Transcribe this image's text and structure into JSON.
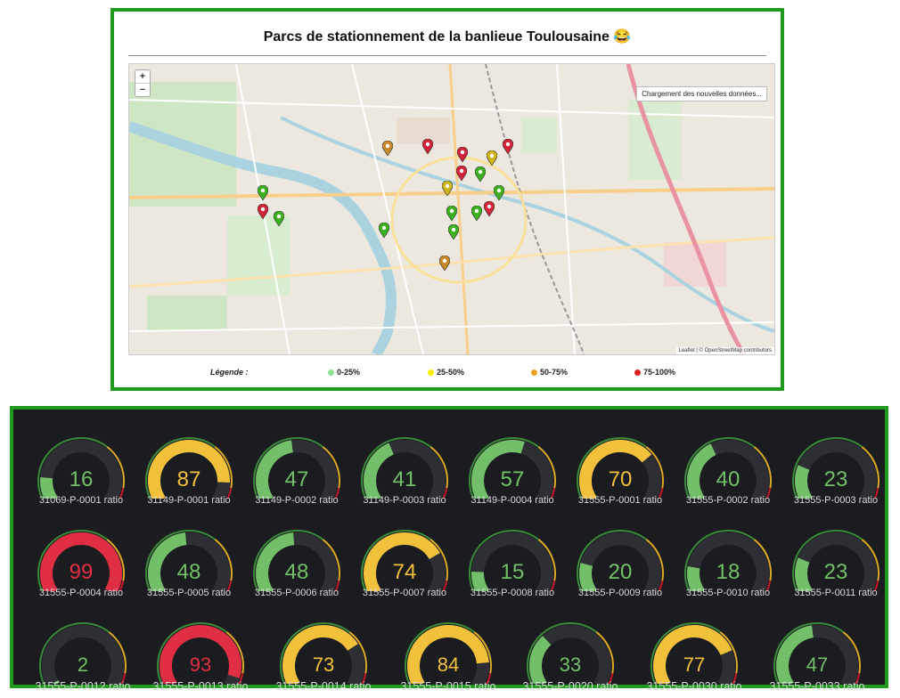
{
  "map_panel": {
    "title": "Parcs de stationnement de la banlieue Toulousaine 😂",
    "zoom_in": "+",
    "zoom_out": "−",
    "loading_text": "Chargement des nouvelles données...",
    "attribution": "Leaflet | © OpenStreetMap contributors",
    "legend": {
      "title": "Légende :",
      "items": [
        {
          "label": "0-25%",
          "color": "#8ee38e"
        },
        {
          "label": "25-50%",
          "color": "#ffee00"
        },
        {
          "label": "50-75%",
          "color": "#f0a020"
        },
        {
          "label": "75-100%",
          "color": "#dd2020"
        }
      ]
    },
    "marker_colors": {
      "green": "#3cb01f",
      "yellow": "#cdb51c",
      "orange": "#c88a2a",
      "red": "#cf243a"
    }
  },
  "gauges": [
    {
      "label": "31069-P-0001 ratio",
      "value": "16"
    },
    {
      "label": "31149-P-0001 ratio",
      "value": "87"
    },
    {
      "label": "31149-P-0002 ratio",
      "value": "47"
    },
    {
      "label": "31149-P-0003 ratio",
      "value": "41"
    },
    {
      "label": "31149-P-0004 ratio",
      "value": "57"
    },
    {
      "label": "31555-P-0001 ratio",
      "value": "70"
    },
    {
      "label": "31555-P-0002 ratio",
      "value": "40"
    },
    {
      "label": "31555-P-0003 ratio",
      "value": "23"
    },
    {
      "label": "31555-P-0004 ratio",
      "value": "99"
    },
    {
      "label": "31555-P-0005 ratio",
      "value": "48"
    },
    {
      "label": "31555-P-0006 ratio",
      "value": "48"
    },
    {
      "label": "31555-P-0007 ratio",
      "value": "74"
    },
    {
      "label": "31555-P-0008 ratio",
      "value": "15"
    },
    {
      "label": "31555-P-0009 ratio",
      "value": "20"
    },
    {
      "label": "31555-P-0010 ratio",
      "value": "18"
    },
    {
      "label": "31555-P-0011 ratio",
      "value": "23"
    },
    {
      "label": "31555-P-0012 ratio",
      "value": "2"
    },
    {
      "label": "31555-P-0013 ratio",
      "value": "93"
    },
    {
      "label": "31555-P-0014 ratio",
      "value": "73"
    },
    {
      "label": "31555-P-0015 ratio",
      "value": "84"
    },
    {
      "label": "31555-P-0020 ratio",
      "value": "33"
    },
    {
      "label": "31555-P-0030 ratio",
      "value": "77"
    },
    {
      "label": "31555-P-0033 ratio",
      "value": "47"
    }
  ],
  "gauge_colors": {
    "green": "#73bf69",
    "yellow": "#f2c13b",
    "red": "#e02f44",
    "track": "#2d2f34",
    "threshold_green": "#3a8a3a",
    "threshold_yellow": "#d8a826",
    "threshold_red": "#c4162a"
  }
}
